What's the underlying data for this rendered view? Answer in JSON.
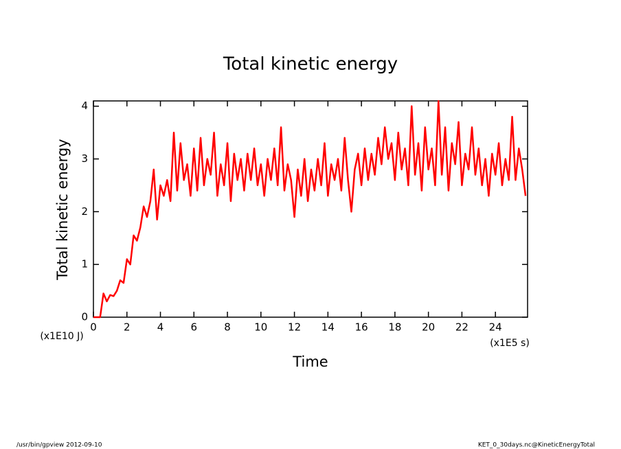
{
  "chart_data": {
    "type": "line",
    "title": "Total kinetic energy",
    "xlabel": "Time",
    "ylabel": "Total kinetic energy",
    "xunit": "(x1E5 s)",
    "yunit": "(x1E10 J)",
    "footer_left": "/usr/bin/gpview  2012-09-10",
    "footer_right": "KET_0_30days.nc@KineticEnergyTotal",
    "xlim": [
      0,
      25.92
    ],
    "ylim": [
      0,
      4.1
    ],
    "xticks": [
      0,
      2,
      4,
      6,
      8,
      10,
      12,
      14,
      16,
      18,
      20,
      22,
      24
    ],
    "yticks": [
      0,
      1,
      2,
      3,
      4
    ],
    "x": [
      0,
      0.2,
      0.4,
      0.6,
      0.8,
      1.0,
      1.2,
      1.4,
      1.6,
      1.8,
      2.0,
      2.2,
      2.4,
      2.6,
      2.8,
      3.0,
      3.2,
      3.4,
      3.6,
      3.8,
      4.0,
      4.2,
      4.4,
      4.6,
      4.8,
      5.0,
      5.2,
      5.4,
      5.6,
      5.8,
      6.0,
      6.2,
      6.4,
      6.6,
      6.8,
      7.0,
      7.2,
      7.4,
      7.6,
      7.8,
      8.0,
      8.2,
      8.4,
      8.6,
      8.8,
      9.0,
      9.2,
      9.4,
      9.6,
      9.8,
      10.0,
      10.2,
      10.4,
      10.6,
      10.8,
      11.0,
      11.2,
      11.4,
      11.6,
      11.8,
      12.0,
      12.2,
      12.4,
      12.6,
      12.8,
      13.0,
      13.2,
      13.4,
      13.6,
      13.8,
      14.0,
      14.2,
      14.4,
      14.6,
      14.8,
      15.0,
      15.2,
      15.4,
      15.6,
      15.8,
      16.0,
      16.2,
      16.4,
      16.6,
      16.8,
      17.0,
      17.2,
      17.4,
      17.6,
      17.8,
      18.0,
      18.2,
      18.4,
      18.6,
      18.8,
      19.0,
      19.2,
      19.4,
      19.6,
      19.8,
      20.0,
      20.2,
      20.4,
      20.6,
      20.8,
      21.0,
      21.2,
      21.4,
      21.6,
      21.8,
      22.0,
      22.2,
      22.4,
      22.6,
      22.8,
      23.0,
      23.2,
      23.4,
      23.6,
      23.8,
      24.0,
      24.2,
      24.4,
      24.6,
      24.8,
      25.0,
      25.2,
      25.4,
      25.6,
      25.8
    ],
    "series": [
      {
        "name": "KineticEnergyTotal",
        "color": "#ff0000",
        "values": [
          0,
          0,
          0,
          0.45,
          0.3,
          0.42,
          0.4,
          0.5,
          0.7,
          0.65,
          1.1,
          1.0,
          1.55,
          1.45,
          1.7,
          2.1,
          1.9,
          2.2,
          2.8,
          1.85,
          2.5,
          2.3,
          2.6,
          2.2,
          3.5,
          2.4,
          3.3,
          2.6,
          2.9,
          2.3,
          3.2,
          2.4,
          3.4,
          2.5,
          3.0,
          2.7,
          3.5,
          2.3,
          2.9,
          2.5,
          3.3,
          2.2,
          3.1,
          2.6,
          3.0,
          2.4,
          3.1,
          2.6,
          3.2,
          2.5,
          2.9,
          2.3,
          3.0,
          2.6,
          3.2,
          2.5,
          3.6,
          2.4,
          2.9,
          2.6,
          1.9,
          2.8,
          2.3,
          3.0,
          2.2,
          2.8,
          2.4,
          3.0,
          2.5,
          3.3,
          2.3,
          2.9,
          2.6,
          3.0,
          2.4,
          3.4,
          2.6,
          2.0,
          2.8,
          3.1,
          2.5,
          3.2,
          2.6,
          3.1,
          2.7,
          3.4,
          2.9,
          3.6,
          3.0,
          3.3,
          2.6,
          3.5,
          2.8,
          3.2,
          2.5,
          4.0,
          2.7,
          3.3,
          2.4,
          3.6,
          2.8,
          3.2,
          2.5,
          4.1,
          2.7,
          3.6,
          2.4,
          3.3,
          2.9,
          3.7,
          2.5,
          3.1,
          2.8,
          3.6,
          2.7,
          3.2,
          2.5,
          3.0,
          2.3,
          3.1,
          2.7,
          3.3,
          2.5,
          3.0,
          2.6,
          3.8,
          2.6,
          3.2,
          2.8,
          2.3
        ]
      }
    ]
  }
}
